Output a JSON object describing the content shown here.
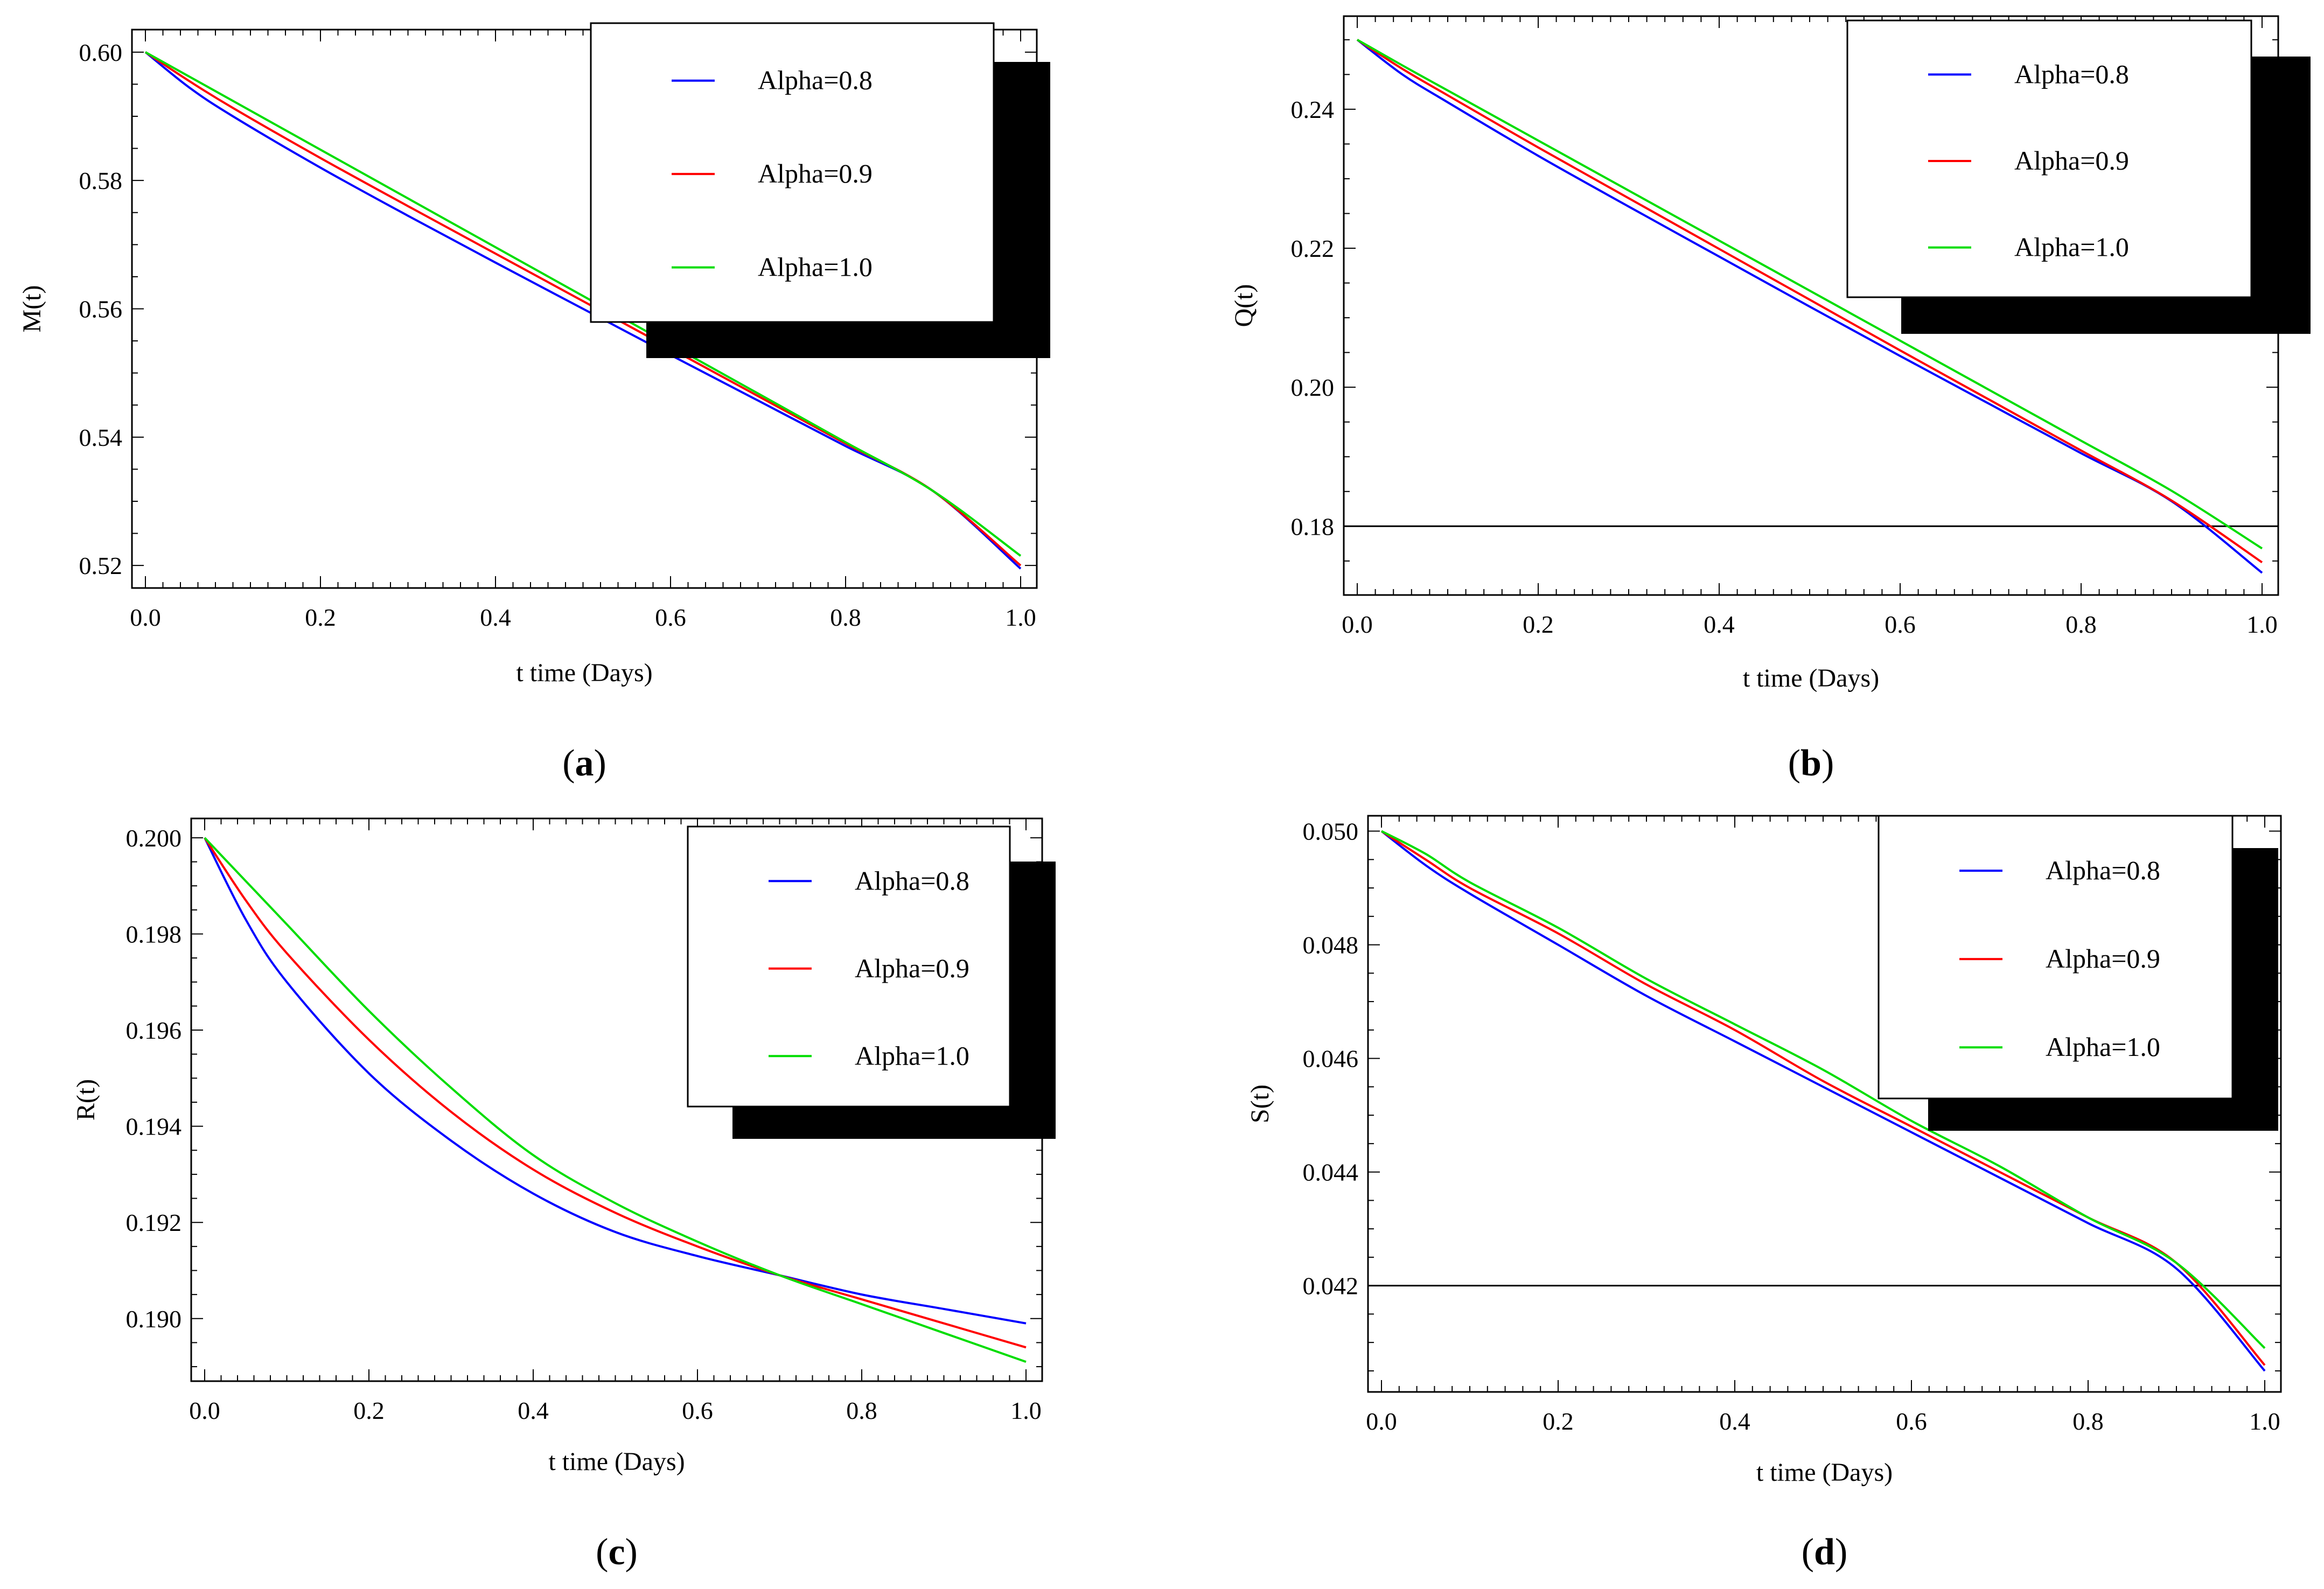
{
  "chart_data": [
    {
      "type": "line",
      "panel": "a",
      "caption_letter": "a",
      "xlabel": "t time (Days)",
      "ylabel": "M(t)",
      "xlim": [
        0,
        1
      ],
      "ylim": [
        0.518,
        0.602
      ],
      "xticks": [
        0.0,
        0.2,
        0.4,
        0.6,
        0.8,
        1.0
      ],
      "xtick_labels": [
        "0.0",
        "0.2",
        "0.4",
        "0.6",
        "0.8",
        "1.0"
      ],
      "yticks": [
        0.52,
        0.54,
        0.56,
        0.58,
        0.6
      ],
      "ytick_labels": [
        "0.52",
        "0.54",
        "0.56",
        "0.58",
        "0.60"
      ],
      "legend": [
        "Alpha=0.8",
        "Alpha=0.9",
        "Alpha=1.0"
      ],
      "colors": [
        "#0000ff",
        "#ff0000",
        "#00dd00"
      ],
      "hline": null,
      "series": [
        {
          "name": "Alpha=0.8",
          "x": [
            0,
            0.05,
            0.1,
            0.2,
            0.3,
            0.4,
            0.5,
            0.6,
            0.7,
            0.8,
            0.9,
            1.0
          ],
          "y": [
            0.6,
            0.5945,
            0.59,
            0.582,
            0.5745,
            0.5672,
            0.56,
            0.5528,
            0.5457,
            0.5386,
            0.5316,
            0.5195
          ]
        },
        {
          "name": "Alpha=0.9",
          "x": [
            0,
            0.05,
            0.1,
            0.2,
            0.3,
            0.4,
            0.5,
            0.6,
            0.7,
            0.8,
            0.9,
            1.0
          ],
          "y": [
            0.6,
            0.5955,
            0.5913,
            0.5835,
            0.576,
            0.5686,
            0.5612,
            0.5538,
            0.5464,
            0.539,
            0.5316,
            0.52
          ]
        },
        {
          "name": "Alpha=1.0",
          "x": [
            0,
            0.05,
            0.1,
            0.2,
            0.3,
            0.4,
            0.5,
            0.6,
            0.7,
            0.8,
            0.9,
            1.0
          ],
          "y": [
            0.6,
            0.5962,
            0.5924,
            0.5848,
            0.5772,
            0.5696,
            0.562,
            0.5544,
            0.5468,
            0.5392,
            0.5316,
            0.5215
          ]
        }
      ]
    },
    {
      "type": "line",
      "panel": "b",
      "caption_letter": "b",
      "xlabel": "t time (Days)",
      "ylabel": "Q(t)",
      "xlim": [
        0,
        1
      ],
      "ylim": [
        0.1715,
        0.252
      ],
      "xticks": [
        0.0,
        0.2,
        0.4,
        0.6,
        0.8,
        1.0
      ],
      "xtick_labels": [
        "0.0",
        "0.2",
        "0.4",
        "0.6",
        "0.8",
        "1.0"
      ],
      "yticks": [
        0.18,
        0.2,
        0.22,
        0.24
      ],
      "ytick_labels": [
        "0.18",
        "0.20",
        "0.22",
        "0.24"
      ],
      "legend": [
        "Alpha=0.8",
        "Alpha=0.9",
        "Alpha=1.0"
      ],
      "colors": [
        "#0000ff",
        "#ff0000",
        "#00dd00"
      ],
      "hline": 0.18,
      "series": [
        {
          "name": "Alpha=0.8",
          "x": [
            0,
            0.05,
            0.1,
            0.2,
            0.3,
            0.4,
            0.5,
            0.6,
            0.7,
            0.8,
            0.9,
            1.0
          ],
          "y": [
            0.25,
            0.245,
            0.241,
            0.2333,
            0.226,
            0.2188,
            0.2116,
            0.2045,
            0.1975,
            0.1905,
            0.1836,
            0.1733
          ]
        },
        {
          "name": "Alpha=0.9",
          "x": [
            0,
            0.05,
            0.1,
            0.2,
            0.3,
            0.4,
            0.5,
            0.6,
            0.7,
            0.8,
            0.9,
            1.0
          ],
          "y": [
            0.25,
            0.2458,
            0.242,
            0.2345,
            0.2272,
            0.2199,
            0.2126,
            0.2053,
            0.1981,
            0.1909,
            0.1837,
            0.1748
          ]
        },
        {
          "name": "Alpha=1.0",
          "x": [
            0,
            0.05,
            0.1,
            0.2,
            0.3,
            0.4,
            0.5,
            0.6,
            0.7,
            0.8,
            0.9,
            1.0
          ],
          "y": [
            0.25,
            0.2463,
            0.2427,
            0.2355,
            0.2283,
            0.2211,
            0.2139,
            0.2067,
            0.1995,
            0.1923,
            0.1851,
            0.1768
          ]
        }
      ]
    },
    {
      "type": "line",
      "panel": "c",
      "caption_letter": "c",
      "xlabel": "t time (Days)",
      "ylabel": "R(t)",
      "xlim": [
        0,
        1
      ],
      "ylim": [
        0.1889,
        0.2002
      ],
      "xticks": [
        0.0,
        0.2,
        0.4,
        0.6,
        0.8,
        1.0
      ],
      "xtick_labels": [
        "0.0",
        "0.2",
        "0.4",
        "0.6",
        "0.8",
        "1.0"
      ],
      "yticks": [
        0.19,
        0.192,
        0.194,
        0.196,
        0.198,
        0.2
      ],
      "ytick_labels": [
        "0.190",
        "0.192",
        "0.194",
        "0.196",
        "0.198",
        "0.200"
      ],
      "legend": [
        "Alpha=0.8",
        "Alpha=0.9",
        "Alpha=1.0"
      ],
      "colors": [
        "#0000ff",
        "#ff0000",
        "#00dd00"
      ],
      "hline": null,
      "series": [
        {
          "name": "Alpha=0.8",
          "x": [
            0,
            0.05,
            0.1,
            0.2,
            0.3,
            0.4,
            0.5,
            0.6,
            0.7,
            0.8,
            0.9,
            1.0
          ],
          "y": [
            0.2,
            0.1983,
            0.197,
            0.1951,
            0.1937,
            0.1926,
            0.1918,
            0.1913,
            0.1909,
            0.1905,
            0.1902,
            0.1899
          ]
        },
        {
          "name": "Alpha=0.9",
          "x": [
            0,
            0.05,
            0.1,
            0.2,
            0.3,
            0.4,
            0.5,
            0.6,
            0.7,
            0.8,
            0.9,
            1.0
          ],
          "y": [
            0.2,
            0.1987,
            0.1976,
            0.1958,
            0.1943,
            0.1931,
            0.1922,
            0.1915,
            0.1909,
            0.1904,
            0.1899,
            0.1894
          ]
        },
        {
          "name": "Alpha=1.0",
          "x": [
            0,
            0.05,
            0.1,
            0.2,
            0.3,
            0.4,
            0.5,
            0.6,
            0.7,
            0.8,
            0.9,
            1.0
          ],
          "y": [
            0.2,
            0.1991,
            0.1982,
            0.1964,
            0.1948,
            0.1934,
            0.1924,
            0.1916,
            0.1909,
            0.1903,
            0.1897,
            0.1891
          ]
        }
      ]
    },
    {
      "type": "line",
      "panel": "d",
      "caption_letter": "d",
      "xlabel": "t time (Days)",
      "ylabel": "S(t)",
      "xlim": [
        0,
        1
      ],
      "ylim": [
        0.0403,
        0.0501
      ],
      "xticks": [
        0.0,
        0.2,
        0.4,
        0.6,
        0.8,
        1.0
      ],
      "xtick_labels": [
        "0.0",
        "0.2",
        "0.4",
        "0.6",
        "0.8",
        "1.0"
      ],
      "yticks": [
        0.042,
        0.044,
        0.046,
        0.048,
        0.05
      ],
      "ytick_labels": [
        "0.042",
        "0.044",
        "0.046",
        "0.048",
        "0.050"
      ],
      "legend": [
        "Alpha=0.8",
        "Alpha=0.9",
        "Alpha=1.0"
      ],
      "colors": [
        "#0000ff",
        "#ff0000",
        "#00dd00"
      ],
      "hline": 0.042,
      "series": [
        {
          "name": "Alpha=0.8",
          "x": [
            0,
            0.05,
            0.1,
            0.2,
            0.3,
            0.4,
            0.5,
            0.6,
            0.7,
            0.8,
            0.9,
            1.0
          ],
          "y": [
            0.05,
            0.0494,
            0.0489,
            0.048,
            0.0471,
            0.0463,
            0.0455,
            0.0447,
            0.0439,
            0.0431,
            0.0423,
            0.0405
          ]
        },
        {
          "name": "Alpha=0.9",
          "x": [
            0,
            0.05,
            0.1,
            0.2,
            0.3,
            0.4,
            0.5,
            0.6,
            0.7,
            0.8,
            0.9,
            1.0
          ],
          "y": [
            0.05,
            0.0495,
            0.049,
            0.0482,
            0.0473,
            0.0465,
            0.0456,
            0.0448,
            0.044,
            0.0432,
            0.0424,
            0.0406
          ]
        },
        {
          "name": "Alpha=1.0",
          "x": [
            0,
            0.05,
            0.1,
            0.2,
            0.3,
            0.4,
            0.5,
            0.6,
            0.7,
            0.8,
            0.9,
            1.0
          ],
          "y": [
            0.05,
            0.0496,
            0.0491,
            0.0483,
            0.0474,
            0.0466,
            0.0458,
            0.0449,
            0.0441,
            0.0432,
            0.0424,
            0.0409
          ]
        }
      ]
    }
  ]
}
